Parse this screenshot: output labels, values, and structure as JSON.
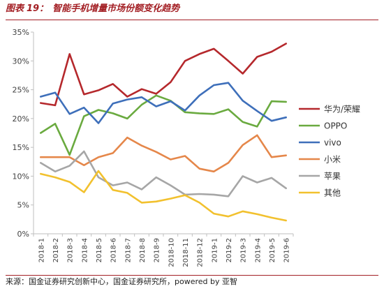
{
  "figure": {
    "label": "图表",
    "number": "19",
    "colon": "：",
    "title": "智能手机增量市场份额变化趋势"
  },
  "source": {
    "text": "来源：国金证券研究创新中心，国金证券研究所，powered by 亚智"
  },
  "colors": {
    "frame": "#a31f24"
  },
  "chart_data": {
    "type": "line",
    "x": [
      "2018-1",
      "2018-2",
      "2018-3",
      "2018-4",
      "2018-5",
      "2018-6",
      "2018-7",
      "2018-8",
      "2018-9",
      "2018-10",
      "2018-11",
      "2018-12",
      "2019-1",
      "2019-2",
      "2019-3",
      "2019-4",
      "2019-5",
      "2019-6"
    ],
    "y_ticks": [
      "0%",
      "5%",
      "10%",
      "15%",
      "20%",
      "25%",
      "30%",
      "35%"
    ],
    "ylim": [
      0,
      35
    ],
    "grid": false,
    "legend_position": "right",
    "series": [
      {
        "name": "华为/荣耀",
        "color": "#b5282c",
        "values": [
          22.7,
          22.3,
          31.2,
          24.2,
          24.9,
          26.0,
          23.8,
          25.1,
          24.3,
          26.3,
          30.0,
          31.2,
          32.1,
          30.0,
          27.8,
          30.7,
          31.6,
          33.0
        ]
      },
      {
        "name": "OPPO",
        "color": "#6aaa3f",
        "values": [
          17.5,
          19.1,
          13.7,
          20.4,
          21.5,
          20.9,
          20.0,
          22.4,
          24.0,
          23.1,
          21.1,
          20.9,
          20.8,
          21.6,
          19.4,
          18.6,
          23.0,
          22.9
        ]
      },
      {
        "name": "vivo",
        "color": "#3e6fba",
        "values": [
          23.8,
          24.5,
          20.8,
          21.9,
          19.2,
          22.6,
          23.3,
          23.7,
          22.1,
          23.0,
          21.4,
          24.0,
          25.8,
          26.2,
          23.1,
          21.3,
          19.6,
          20.2
        ]
      },
      {
        "name": "小米",
        "color": "#e5874a",
        "values": [
          13.3,
          13.3,
          13.3,
          11.9,
          13.3,
          14.0,
          16.7,
          15.3,
          14.2,
          12.9,
          13.5,
          11.3,
          10.8,
          12.3,
          15.4,
          17.1,
          13.3,
          13.6
        ]
      },
      {
        "name": "苹果",
        "color": "#a6a6a6",
        "values": [
          12.3,
          10.8,
          11.8,
          14.3,
          9.8,
          8.4,
          8.9,
          7.7,
          9.8,
          8.4,
          6.8,
          6.9,
          6.8,
          6.5,
          10.0,
          8.9,
          9.7,
          7.9
        ]
      },
      {
        "name": "其他",
        "color": "#f2c12e",
        "values": [
          10.4,
          9.8,
          9.0,
          7.2,
          10.9,
          7.6,
          7.1,
          5.4,
          5.6,
          6.1,
          6.7,
          5.4,
          3.5,
          3.0,
          3.9,
          3.4,
          2.8,
          2.3
        ]
      }
    ]
  }
}
